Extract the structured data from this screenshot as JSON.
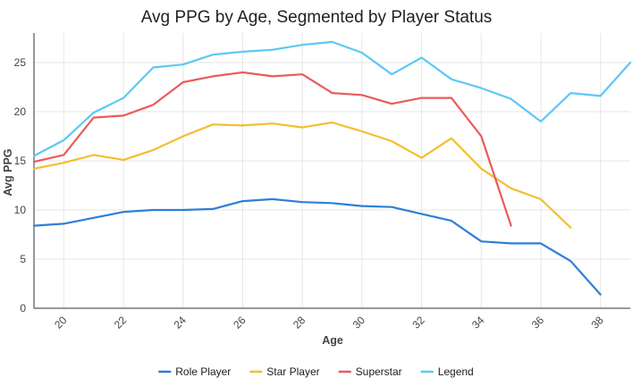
{
  "chart_data": {
    "type": "line",
    "title": "Avg PPG by Age, Segmented by Player Status",
    "xlabel": "Age",
    "ylabel": "Avg PPG",
    "xlim": [
      19,
      39
    ],
    "ylim": [
      0,
      28
    ],
    "x_ticks": [
      20,
      22,
      24,
      26,
      28,
      30,
      32,
      34,
      36,
      38
    ],
    "y_ticks": [
      0,
      5,
      10,
      15,
      20,
      25
    ],
    "grid": true,
    "legend_position": "bottom",
    "series": [
      {
        "name": "Role Player",
        "color": "#2e7fd6",
        "x": [
          19,
          20,
          21,
          22,
          23,
          24,
          25,
          26,
          27,
          28,
          29,
          30,
          31,
          32,
          33,
          34,
          35,
          36,
          37,
          38
        ],
        "values": [
          8.4,
          8.6,
          9.2,
          9.8,
          10.0,
          10.0,
          10.1,
          10.9,
          11.1,
          10.8,
          10.7,
          10.4,
          10.3,
          9.6,
          8.9,
          6.8,
          6.6,
          6.6,
          4.8,
          1.4
        ]
      },
      {
        "name": "Star Player",
        "color": "#f4be2f",
        "x": [
          19,
          20,
          21,
          22,
          23,
          24,
          25,
          26,
          27,
          28,
          29,
          30,
          31,
          32,
          33,
          34,
          35,
          36,
          37
        ],
        "values": [
          14.2,
          14.8,
          15.6,
          15.1,
          16.1,
          17.5,
          18.7,
          18.6,
          18.8,
          18.4,
          18.9,
          18.0,
          17.0,
          15.3,
          17.3,
          14.2,
          12.2,
          11.1,
          8.2
        ]
      },
      {
        "name": "Superstar",
        "color": "#ea5b5b",
        "x": [
          19,
          20,
          21,
          22,
          23,
          24,
          25,
          26,
          27,
          28,
          29,
          30,
          31,
          32,
          33,
          34,
          35
        ],
        "values": [
          14.9,
          15.6,
          19.4,
          19.6,
          20.7,
          23.0,
          23.6,
          24.0,
          23.6,
          23.8,
          21.9,
          21.7,
          20.8,
          21.4,
          21.4,
          17.5,
          8.4
        ]
      },
      {
        "name": "Legend",
        "color": "#5bc9f5",
        "x": [
          19,
          20,
          21,
          22,
          23,
          24,
          25,
          26,
          27,
          28,
          29,
          30,
          31,
          32,
          33,
          34,
          35,
          36,
          37,
          38,
          39
        ],
        "values": [
          15.5,
          17.1,
          19.9,
          21.4,
          24.5,
          24.8,
          25.8,
          26.1,
          26.3,
          26.8,
          27.1,
          26.0,
          23.8,
          25.5,
          23.3,
          22.4,
          21.3,
          19.0,
          21.9,
          21.6,
          25.0
        ]
      }
    ]
  }
}
